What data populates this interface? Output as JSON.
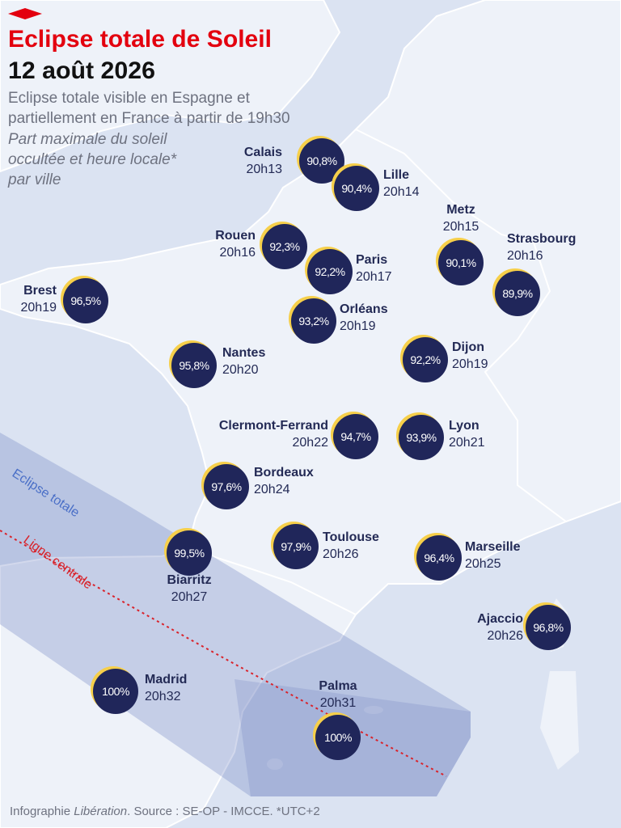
{
  "header": {
    "title": "Eclipse totale de Soleil",
    "date": "12 août 2026",
    "subtitle": [
      "Eclipse totale visible en Espagne et",
      "partiellement en France à partir de 19h30"
    ],
    "note": [
      "Part maximale du soleil",
      "occultée et heure locale*",
      "par ville"
    ]
  },
  "map_labels": {
    "totality": "Eclipse totale",
    "centerline": "Ligne centrale"
  },
  "cities": [
    {
      "name": "Calais",
      "percent": "90,8%",
      "time": "20h13"
    },
    {
      "name": "Lille",
      "percent": "90,4%",
      "time": "20h14"
    },
    {
      "name": "Metz",
      "percent": "90,1%",
      "time": "20h15"
    },
    {
      "name": "Strasbourg",
      "percent": "89,9%",
      "time": "20h16"
    },
    {
      "name": "Rouen",
      "percent": "92,3%",
      "time": "20h16"
    },
    {
      "name": "Paris",
      "percent": "92,2%",
      "time": "20h17"
    },
    {
      "name": "Brest",
      "percent": "96,5%",
      "time": "20h19"
    },
    {
      "name": "Orléans",
      "percent": "93,2%",
      "time": "20h19"
    },
    {
      "name": "Dijon",
      "percent": "92,2%",
      "time": "20h19"
    },
    {
      "name": "Nantes",
      "percent": "95,8%",
      "time": "20h20"
    },
    {
      "name": "Clermont-Ferrand",
      "percent": "94,7%",
      "time": "20h22"
    },
    {
      "name": "Lyon",
      "percent": "93,9%",
      "time": "20h21"
    },
    {
      "name": "Bordeaux",
      "percent": "97,6%",
      "time": "20h24"
    },
    {
      "name": "Toulouse",
      "percent": "97,9%",
      "time": "20h26"
    },
    {
      "name": "Marseille",
      "percent": "96,4%",
      "time": "20h25"
    },
    {
      "name": "Biarritz",
      "percent": "99,5%",
      "time": "20h27"
    },
    {
      "name": "Ajaccio",
      "percent": "96,8%",
      "time": "20h26"
    },
    {
      "name": "Madrid",
      "percent": "100%",
      "time": "20h32"
    },
    {
      "name": "Palma",
      "percent": "100%",
      "time": "20h31"
    }
  ],
  "footer": {
    "prefix": "Infographie ",
    "publication": "Libération",
    "suffix": ". Source : SE-OP - IMCCE. *UTC+2"
  }
}
